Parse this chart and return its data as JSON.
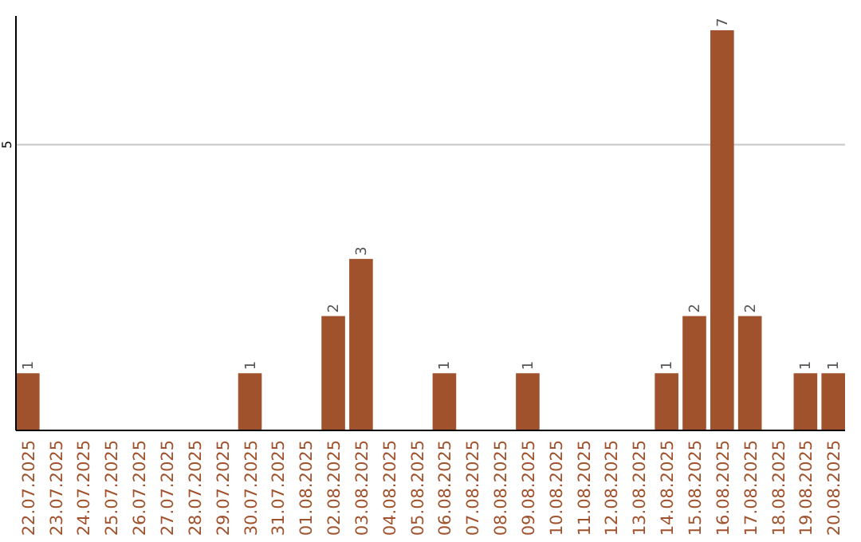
{
  "chart_data": {
    "type": "bar",
    "categories": [
      "22.07.2025",
      "23.07.2025",
      "24.07.2025",
      "25.07.2025",
      "26.07.2025",
      "27.07.2025",
      "28.07.2025",
      "29.07.2025",
      "30.07.2025",
      "31.07.2025",
      "01.08.2025",
      "02.08.2025",
      "03.08.2025",
      "04.08.2025",
      "05.08.2025",
      "06.08.2025",
      "07.08.2025",
      "08.08.2025",
      "09.08.2025",
      "10.08.2025",
      "11.08.2025",
      "12.08.2025",
      "13.08.2025",
      "14.08.2025",
      "15.08.2025",
      "16.08.2025",
      "17.08.2025",
      "18.08.2025",
      "19.08.2025",
      "20.08.2025"
    ],
    "values": [
      1,
      0,
      0,
      0,
      0,
      0,
      0,
      0,
      1,
      0,
      0,
      2,
      3,
      0,
      0,
      1,
      0,
      0,
      1,
      0,
      0,
      0,
      0,
      1,
      2,
      7,
      2,
      0,
      1,
      1
    ],
    "value_labels": [
      "1",
      null,
      null,
      null,
      null,
      null,
      null,
      null,
      "1",
      null,
      null,
      "2",
      "3",
      null,
      null,
      "1",
      null,
      null,
      "1",
      null,
      null,
      null,
      null,
      "1",
      "2",
      "7",
      "2",
      null,
      "1",
      "1"
    ],
    "color": "#a0522d",
    "ylim": [
      0,
      7.25
    ],
    "yticks": [
      5
    ],
    "grid": "y"
  }
}
